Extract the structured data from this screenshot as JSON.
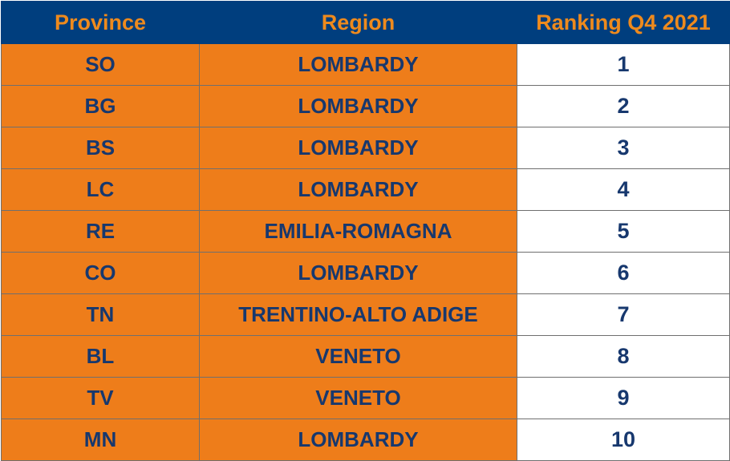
{
  "chart_data": {
    "type": "table",
    "columns": [
      "Province",
      "Region",
      "Ranking Q4 2021"
    ],
    "rows": [
      {
        "province": "SO",
        "region": "LOMBARDY",
        "rank": "1"
      },
      {
        "province": "BG",
        "region": "LOMBARDY",
        "rank": "2"
      },
      {
        "province": "BS",
        "region": "LOMBARDY",
        "rank": "3"
      },
      {
        "province": "LC",
        "region": "LOMBARDY",
        "rank": "4"
      },
      {
        "province": "RE",
        "region": "EMILIA-ROMAGNA",
        "rank": "5"
      },
      {
        "province": "CO",
        "region": "LOMBARDY",
        "rank": "6"
      },
      {
        "province": "TN",
        "region": "TRENTINO-ALTO ADIGE",
        "rank": "7"
      },
      {
        "province": "BL",
        "region": "VENETO",
        "rank": "8"
      },
      {
        "province": "TV",
        "region": "VENETO",
        "rank": "9"
      },
      {
        "province": "MN",
        "region": "LOMBARDY",
        "rank": "10"
      }
    ]
  },
  "colors": {
    "header_background": "#003e7e",
    "header_text": "#ee8a1d",
    "label_cell_background": "#ee7d1a",
    "rank_cell_background": "#ffffff",
    "cell_text": "#17386e"
  }
}
